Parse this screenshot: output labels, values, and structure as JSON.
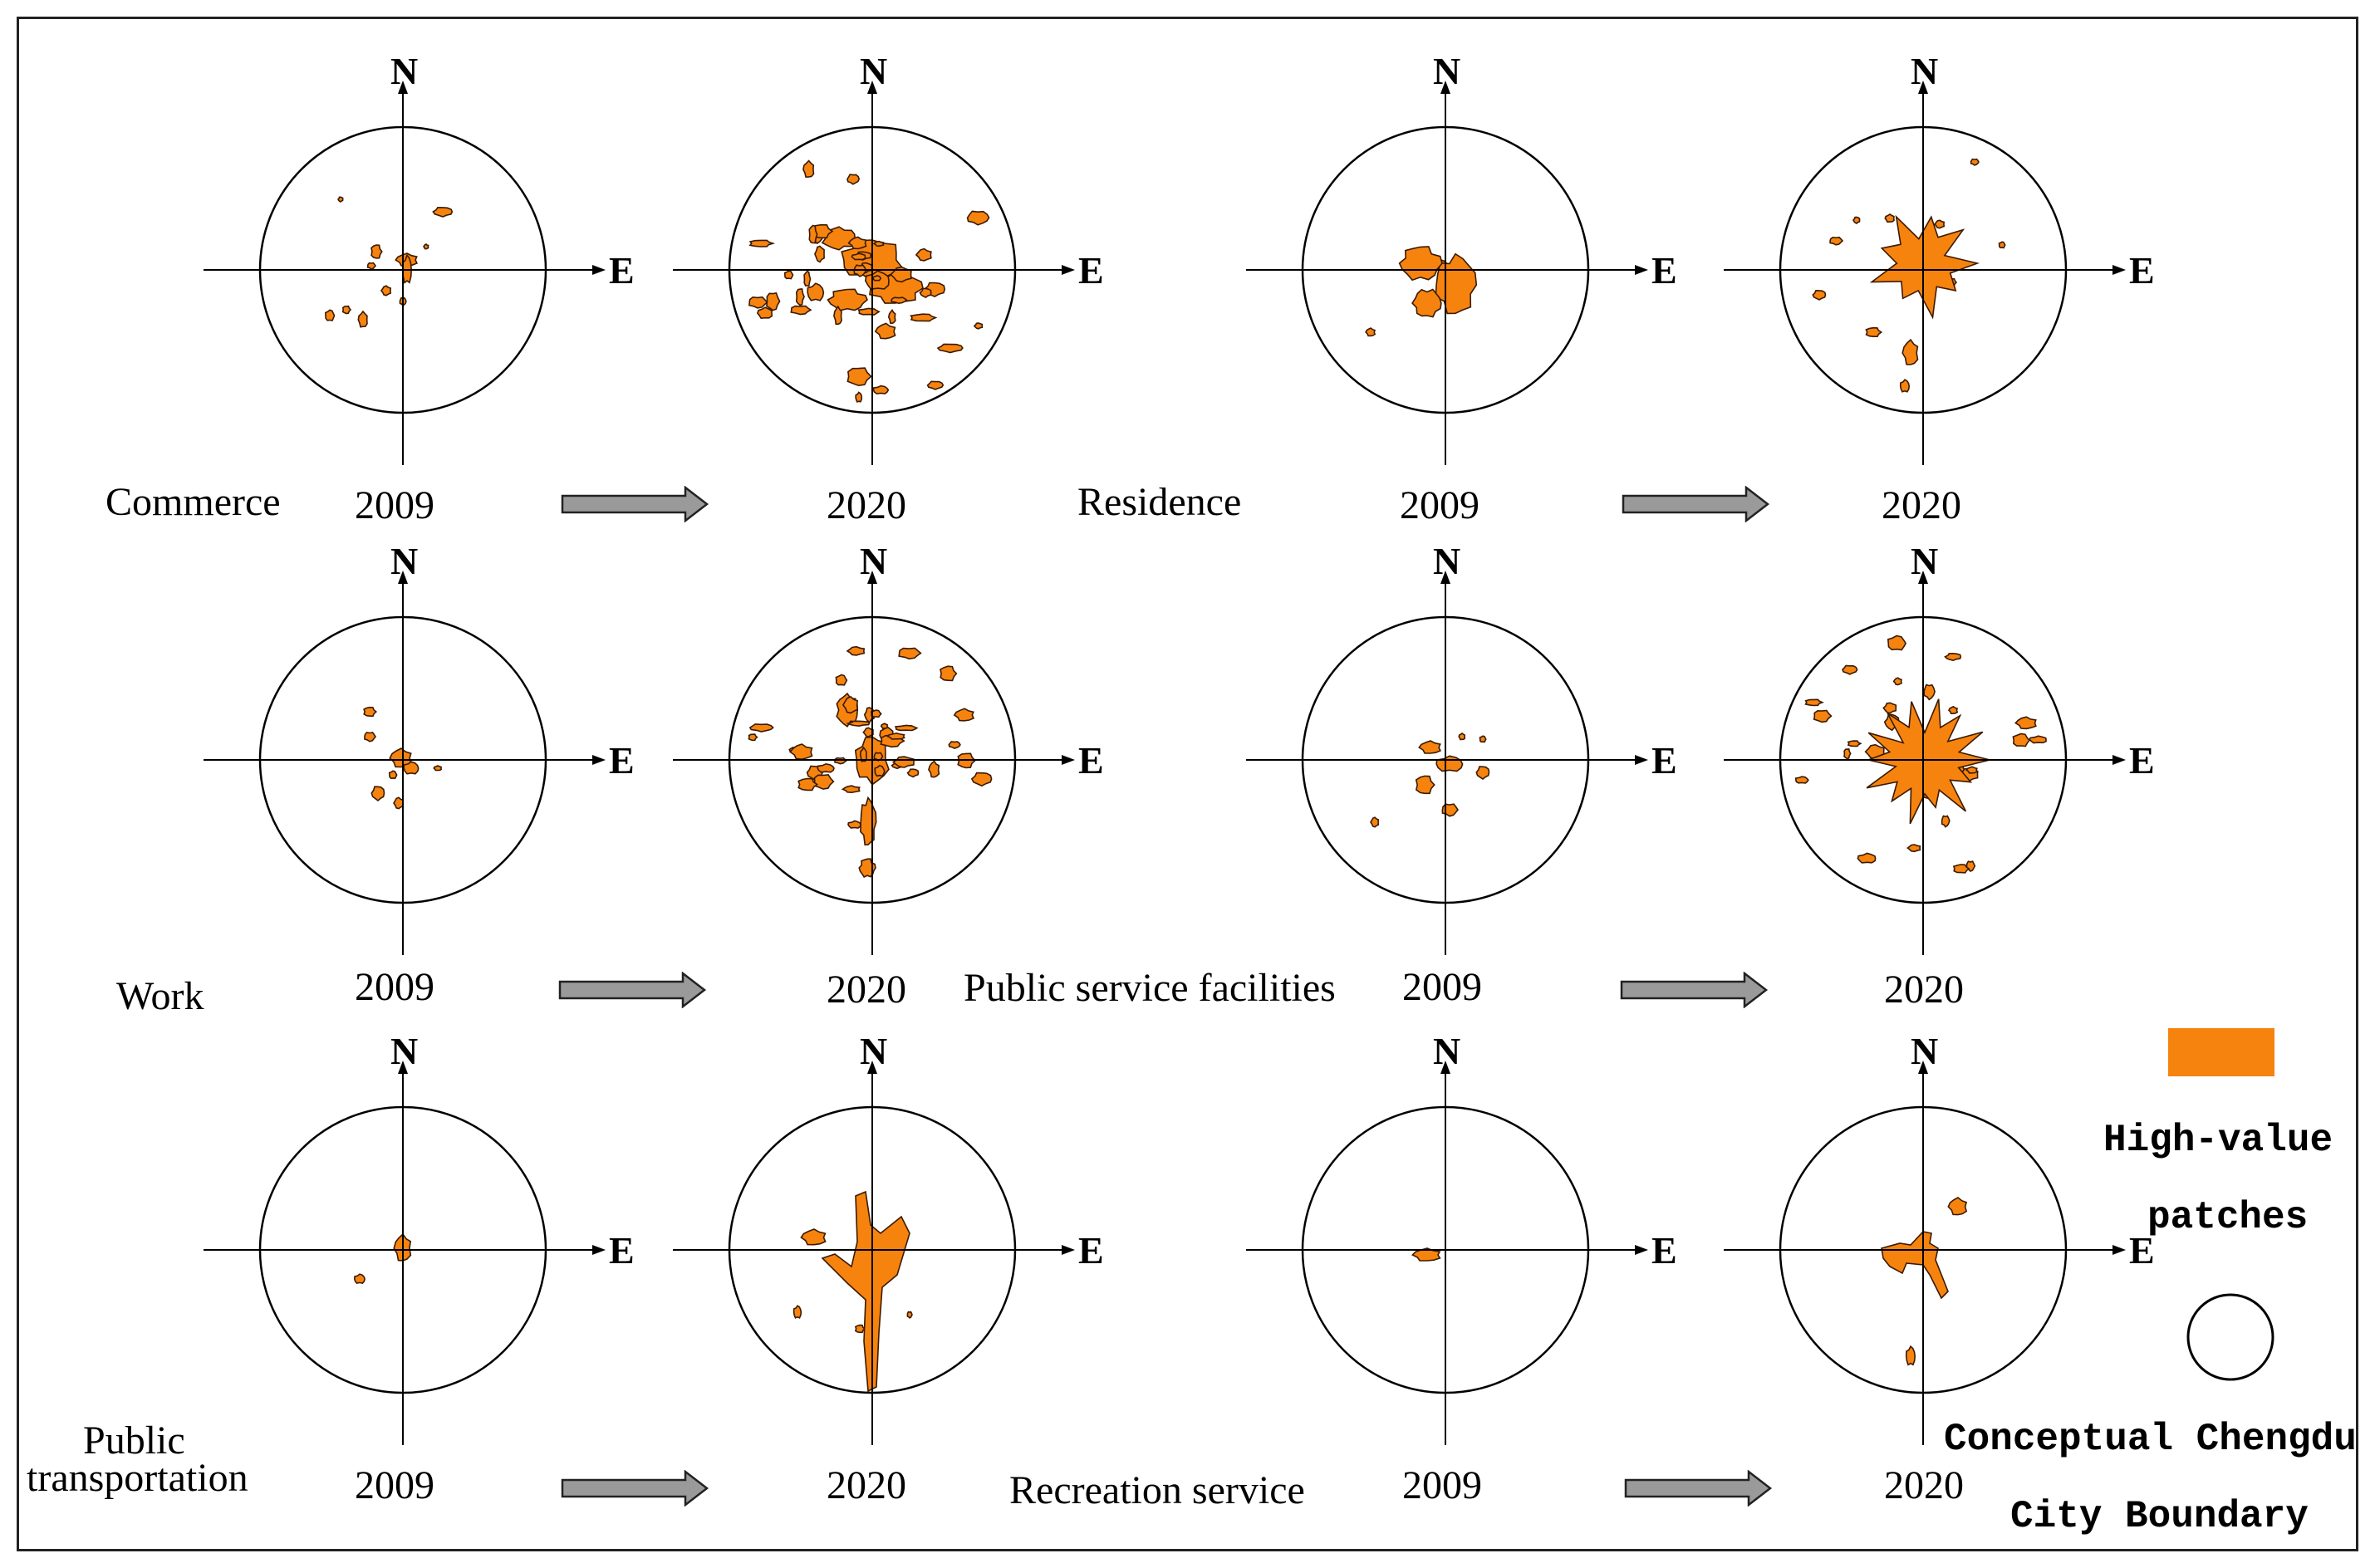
{
  "figure": {
    "axis_north_label": "N",
    "axis_east_label": "E",
    "patch_color": "#f7830f",
    "patch_stroke": "#3a1a00"
  },
  "categories": [
    {
      "name": "Commerce",
      "year_from": "2009",
      "year_to": "2020"
    },
    {
      "name": "Residence",
      "year_from": "2009",
      "year_to": "2020"
    },
    {
      "name": "Work",
      "year_from": "2009",
      "year_to": "2020"
    },
    {
      "name": "Public service facilities",
      "year_from": "2009",
      "year_to": "2020"
    },
    {
      "name": "Public transportation",
      "year_from": "2009",
      "year_to": "2020"
    },
    {
      "name": "Recreation service",
      "year_from": "2009",
      "year_to": "2020"
    }
  ],
  "category_labels": {
    "public_transport_line1": "Public",
    "public_transport_line2": "transportation"
  },
  "legend": {
    "patch_label_line1": "High-value",
    "patch_label_line2": "patches",
    "boundary_label_line1": "Conceptual Chengdu",
    "boundary_label_line2": "City Boundary"
  }
}
